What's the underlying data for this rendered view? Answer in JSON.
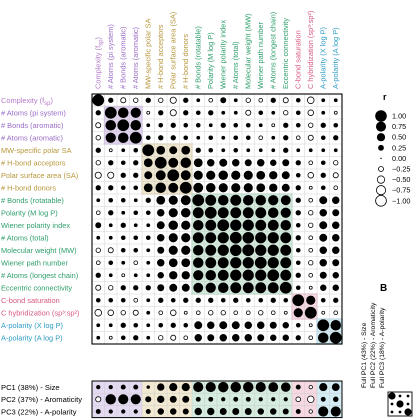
{
  "chart_data": {
    "type": "heatmap",
    "encoding": "circle size = |r|, filled = positive, open = negative",
    "variables": [
      {
        "label": "Complexity (f",
        "sub": "sp",
        "tail": ")",
        "group": "complexity"
      },
      {
        "label": "# Atoms (pi system)",
        "group": "aromaticity"
      },
      {
        "label": "# Bonds (aromatic)",
        "group": "aromaticity"
      },
      {
        "label": "# Atoms (aromatic)",
        "group": "aromaticity"
      },
      {
        "label": "MW-specific polar SA",
        "group": "polar"
      },
      {
        "label": "# H-bond acceptors",
        "group": "polar"
      },
      {
        "label": "Polar surface area (SA)",
        "group": "polar"
      },
      {
        "label": "# H-bond donors",
        "group": "polar"
      },
      {
        "label": "# Bonds (rotatable)",
        "group": "size"
      },
      {
        "label": "Polarity (M log P)",
        "group": "size"
      },
      {
        "label": "Wiener polarity index",
        "group": "size"
      },
      {
        "label": "# Atoms (total)",
        "group": "size"
      },
      {
        "label": "Molecular weight (MW)",
        "group": "size"
      },
      {
        "label": "Wiener path number",
        "group": "size"
      },
      {
        "label": "# Atoms (longest chain)",
        "group": "size"
      },
      {
        "label": "Eccentric connectivity",
        "group": "size"
      },
      {
        "label": "C-bond saturation",
        "group": "saturation"
      },
      {
        "label": "C hybridization (sp³:sp²)",
        "group": "saturation"
      },
      {
        "label": "A-polarity (X log P)",
        "group": "apolarity"
      },
      {
        "label": "A-polarity (A log P)",
        "group": "apolarity"
      }
    ],
    "matrix": [
      [
        1.0,
        0.2,
        -0.25,
        -0.2,
        0.2,
        -0.2,
        -0.35,
        0.2,
        0.1,
        -0.15,
        0.25,
        0.1,
        -0.2,
        -0.15,
        0.2,
        -0.25,
        0.15,
        -0.4,
        0.1,
        0.1
      ],
      [
        0.2,
        1.0,
        0.8,
        0.75,
        -0.1,
        0.2,
        -0.35,
        0.2,
        0.15,
        0.2,
        0.1,
        0.1,
        -0.25,
        0.15,
        0.1,
        -0.2,
        0.15,
        -0.3,
        0.1,
        -0.1
      ],
      [
        -0.25,
        0.8,
        1.0,
        0.8,
        0.1,
        0.15,
        0.2,
        0.15,
        0.15,
        0.1,
        0.2,
        0.15,
        0.15,
        0.1,
        -0.1,
        0.2,
        0.15,
        -0.2,
        0.2,
        0.15
      ],
      [
        -0.2,
        0.75,
        0.8,
        1.0,
        0.15,
        0.2,
        0.2,
        0.15,
        0.1,
        0.15,
        0.1,
        0.15,
        0.15,
        -0.15,
        0.1,
        0.2,
        -0.15,
        -0.25,
        0.15,
        0.2
      ],
      [
        0.2,
        -0.1,
        0.1,
        0.15,
        1.0,
        0.55,
        0.45,
        0.55,
        0.2,
        0.15,
        0.1,
        0.15,
        0.1,
        0.1,
        0.1,
        0.2,
        0.1,
        0.1,
        0.1,
        0.1
      ],
      [
        -0.2,
        0.2,
        0.15,
        0.2,
        0.55,
        1.0,
        0.7,
        0.8,
        0.55,
        0.4,
        0.45,
        0.4,
        0.35,
        0.4,
        0.3,
        0.35,
        0.2,
        -0.15,
        0.15,
        -0.2
      ],
      [
        -0.35,
        -0.35,
        0.2,
        0.2,
        0.45,
        0.7,
        1.0,
        0.7,
        0.6,
        0.6,
        0.65,
        0.6,
        0.6,
        0.55,
        0.5,
        0.45,
        0.15,
        -0.3,
        0.2,
        -0.25
      ],
      [
        0.2,
        0.2,
        0.15,
        0.15,
        0.55,
        0.8,
        0.7,
        1.0,
        0.7,
        0.65,
        0.6,
        0.6,
        0.6,
        0.55,
        0.5,
        0.45,
        0.2,
        -0.1,
        0.15,
        -0.15
      ],
      [
        0.1,
        0.15,
        0.15,
        0.1,
        0.2,
        0.55,
        0.6,
        0.7,
        1.0,
        0.85,
        0.8,
        0.85,
        0.8,
        0.8,
        0.75,
        0.7,
        0.2,
        -0.15,
        0.45,
        0.4
      ],
      [
        -0.15,
        0.2,
        0.1,
        0.15,
        0.15,
        0.4,
        0.6,
        0.65,
        0.85,
        1.0,
        0.85,
        0.85,
        0.85,
        0.85,
        0.8,
        0.75,
        0.2,
        -0.2,
        0.4,
        0.35
      ],
      [
        0.25,
        0.1,
        0.2,
        0.1,
        0.1,
        0.45,
        0.65,
        0.6,
        0.8,
        0.85,
        1.0,
        0.9,
        0.9,
        0.85,
        0.85,
        0.8,
        0.15,
        -0.2,
        0.45,
        0.4
      ],
      [
        0.1,
        0.1,
        0.15,
        0.15,
        0.15,
        0.4,
        0.6,
        0.6,
        0.85,
        0.85,
        0.9,
        1.0,
        0.95,
        0.9,
        0.9,
        0.85,
        0.2,
        -0.15,
        0.45,
        0.4
      ],
      [
        -0.2,
        -0.25,
        0.15,
        0.15,
        0.1,
        0.35,
        0.6,
        0.6,
        0.8,
        0.85,
        0.9,
        0.95,
        1.0,
        0.9,
        0.9,
        0.85,
        0.15,
        -0.15,
        0.4,
        0.4
      ],
      [
        -0.15,
        0.15,
        0.1,
        -0.15,
        0.1,
        0.4,
        0.55,
        0.55,
        0.8,
        0.85,
        0.85,
        0.9,
        0.9,
        1.0,
        0.9,
        0.85,
        0.15,
        -0.2,
        0.4,
        0.35
      ],
      [
        0.2,
        0.1,
        -0.1,
        0.1,
        0.1,
        0.3,
        0.5,
        0.5,
        0.75,
        0.8,
        0.85,
        0.9,
        0.9,
        0.9,
        1.0,
        0.85,
        0.2,
        -0.15,
        0.35,
        0.3
      ],
      [
        -0.25,
        -0.2,
        0.2,
        0.2,
        0.2,
        0.35,
        0.45,
        0.45,
        0.7,
        0.75,
        0.8,
        0.85,
        0.85,
        0.85,
        0.85,
        1.0,
        0.15,
        -0.1,
        0.3,
        0.3
      ],
      [
        0.15,
        0.15,
        0.15,
        -0.15,
        0.1,
        0.2,
        0.15,
        0.2,
        0.2,
        0.2,
        0.15,
        0.2,
        0.15,
        0.15,
        0.2,
        0.15,
        1.0,
        0.6,
        0.15,
        0.2
      ],
      [
        -0.4,
        -0.3,
        -0.2,
        -0.25,
        0.1,
        -0.15,
        -0.3,
        -0.1,
        -0.15,
        -0.2,
        -0.2,
        -0.15,
        -0.15,
        -0.2,
        -0.15,
        -0.1,
        0.6,
        1.0,
        -0.1,
        -0.15
      ],
      [
        0.1,
        0.1,
        0.2,
        0.15,
        0.1,
        0.15,
        0.2,
        0.15,
        0.45,
        0.4,
        0.45,
        0.45,
        0.4,
        0.4,
        0.35,
        0.3,
        0.15,
        -0.1,
        1.0,
        0.8
      ],
      [
        0.1,
        -0.1,
        0.15,
        0.2,
        0.1,
        -0.2,
        -0.25,
        -0.15,
        0.4,
        0.35,
        0.4,
        0.4,
        0.4,
        0.35,
        0.3,
        0.3,
        0.2,
        -0.15,
        0.8,
        1.0
      ]
    ],
    "pcs": [
      {
        "label": "PC1 (38%) - Size",
        "values": [
          0.15,
          0.15,
          0.2,
          0.2,
          0.1,
          0.45,
          0.55,
          0.55,
          0.85,
          0.85,
          0.9,
          0.9,
          0.9,
          0.85,
          0.8,
          0.75,
          0.2,
          -0.15,
          0.55,
          0.5
        ]
      },
      {
        "label": "PC2 (37%) - Aromaticity",
        "values": [
          -0.3,
          0.9,
          0.85,
          0.85,
          0.3,
          0.45,
          0.4,
          0.4,
          0.2,
          0.2,
          0.15,
          0.2,
          0.2,
          0.15,
          0.15,
          0.15,
          -0.25,
          -0.45,
          0.2,
          0.25
        ]
      },
      {
        "label": "PC3 (22%) - A-polarity",
        "values": [
          0.2,
          0.15,
          0.15,
          0.15,
          0.2,
          0.35,
          0.35,
          0.3,
          0.45,
          0.45,
          0.4,
          0.4,
          0.4,
          0.35,
          0.35,
          0.3,
          0.2,
          -0.15,
          0.85,
          0.85
        ]
      }
    ],
    "legend": {
      "title": "r",
      "labels": [
        "1.00",
        "0.75",
        "0.50",
        "0.25",
        "0.00",
        "−0.25",
        "−0.50",
        "−0.75",
        "−1.00"
      ],
      "values": [
        1.0,
        0.75,
        0.5,
        0.25,
        0.0,
        -0.25,
        -0.5,
        -0.75,
        -1.0
      ]
    },
    "panel_b": {
      "letter": "B",
      "rows": [
        "Full PC1 (43%) - Size",
        "Full PC2 (22%) - Aromaticity",
        "Full PC3 (18%) - A-polarity"
      ]
    },
    "colors": {
      "complexity": "#b57bc9",
      "aromaticity": "#9b6cc4",
      "polar": "#b8973c",
      "size": "#2f9e6b",
      "saturation": "#d65a7e",
      "apolarity": "#2f9bc4",
      "box_aromaticity": "#d8c6ec",
      "box_polar": "#eadfbf",
      "box_size": "#c3e4d0",
      "box_saturation": "#f2cbd6",
      "box_apolarity": "#bfe3ee",
      "pc_tint": [
        "#e3d9f1",
        "#e3d9f1",
        "#e3d9f1",
        "#e3d9f1",
        "#f1e9d2",
        "#f1e9d2",
        "#f1e9d2",
        "#f1e9d2",
        "#d5ecdf",
        "#d5ecdf",
        "#d5ecdf",
        "#d5ecdf",
        "#d5ecdf",
        "#d5ecdf",
        "#d5ecdf",
        "#d5ecdf",
        "#f5d8e1",
        "#f5d8e1",
        "#d4ecf4",
        "#d4ecf4"
      ]
    }
  }
}
